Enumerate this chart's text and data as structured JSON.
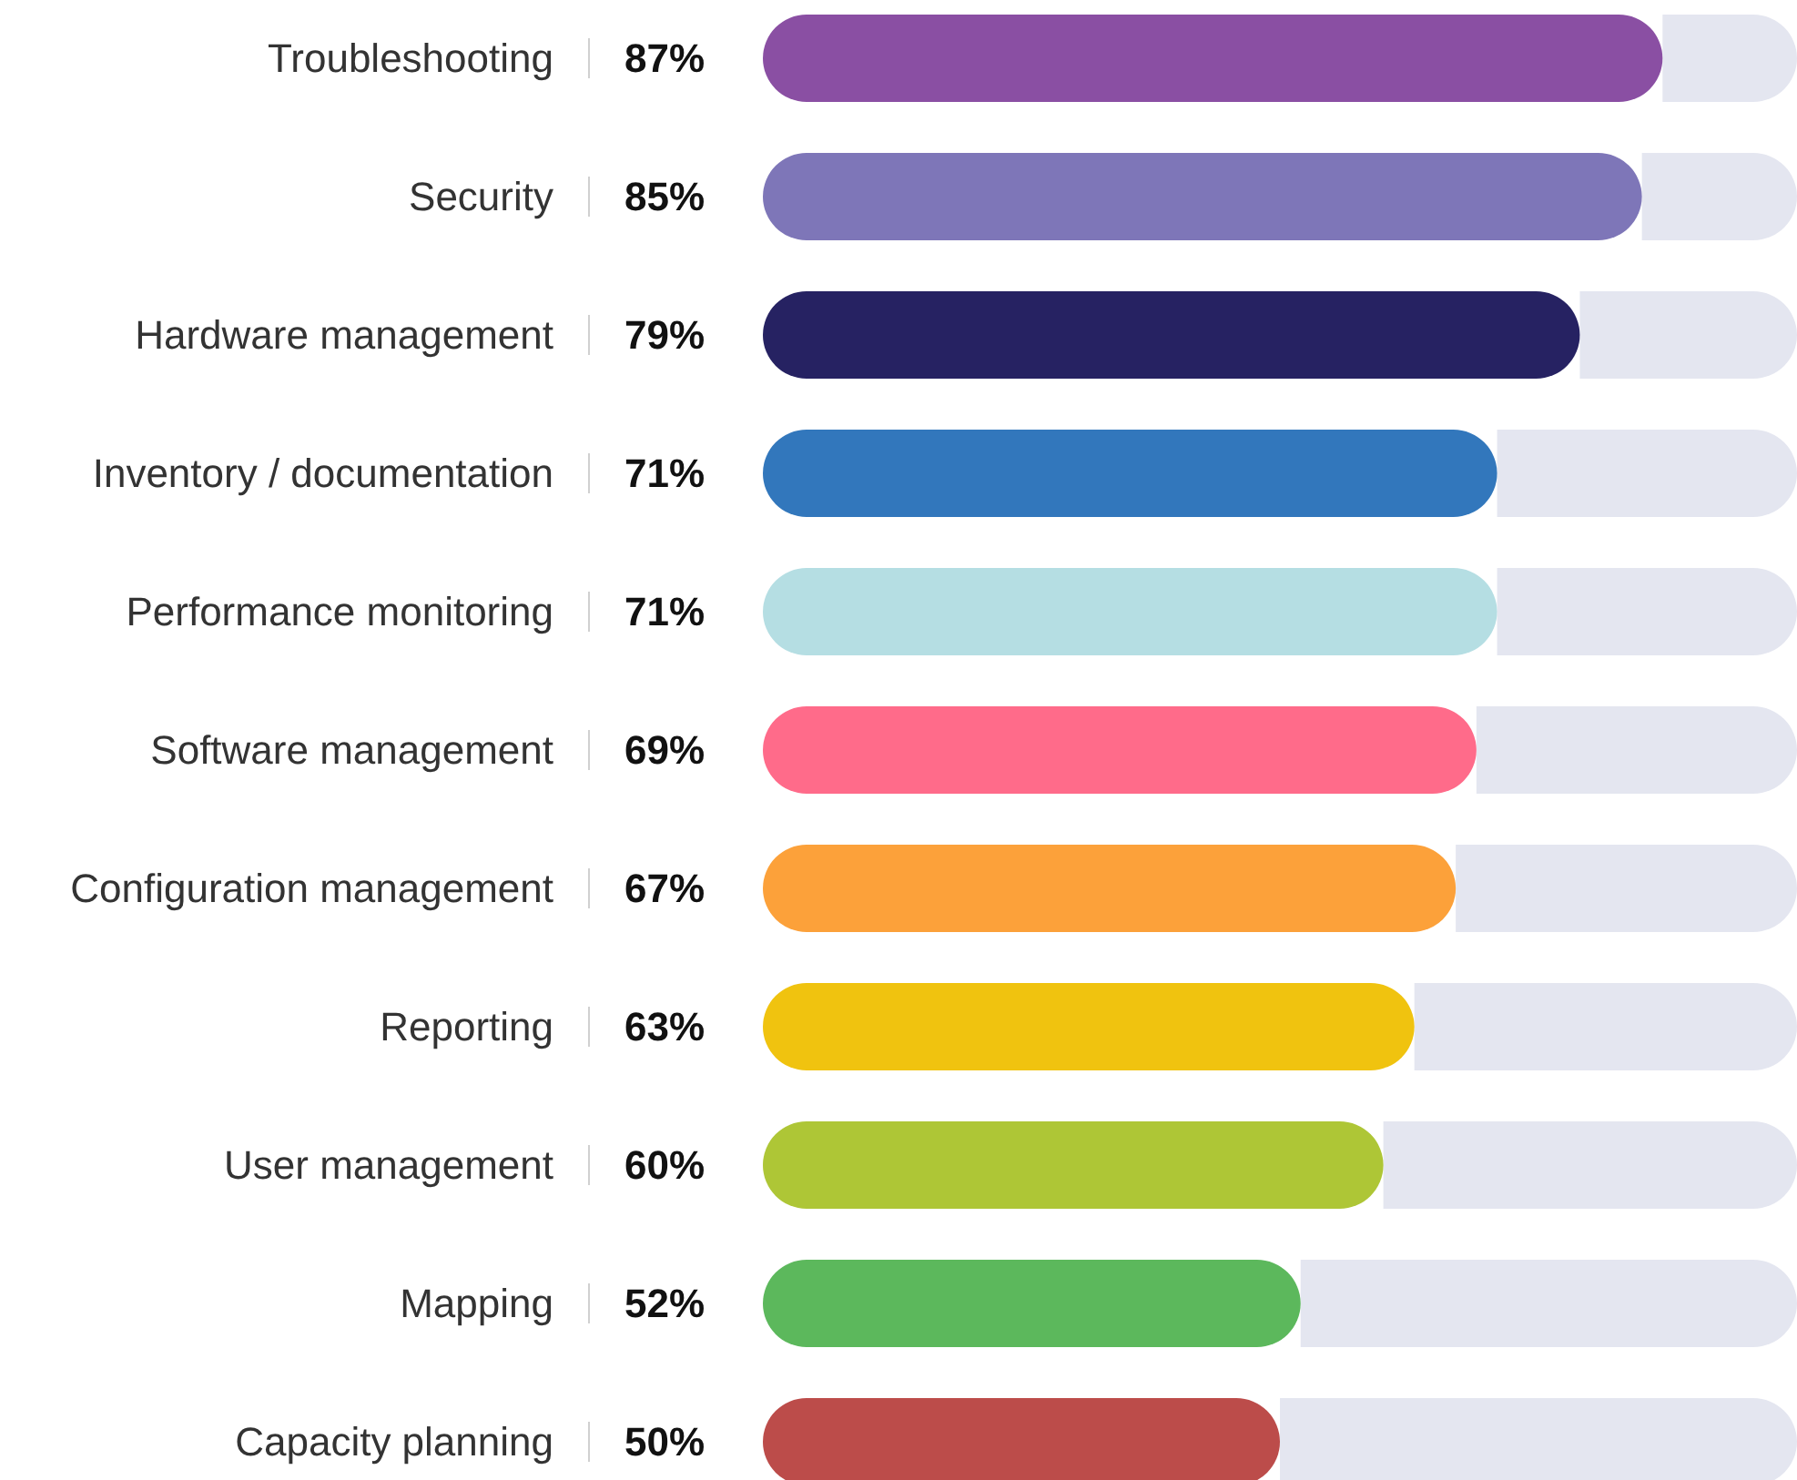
{
  "chart_data": {
    "type": "bar",
    "orientation": "horizontal",
    "stacked": true,
    "xlim": [
      0,
      100
    ],
    "categories": [
      "Troubleshooting",
      "Security",
      "Hardware management",
      "Inventory / documentation",
      "Performance monitoring",
      "Software management",
      "Configuration management",
      "Reporting",
      "User management",
      "Mapping",
      "Capacity planning"
    ],
    "series": [
      {
        "values": [
          87,
          85,
          79,
          71,
          71,
          69,
          67,
          63,
          60,
          52,
          50
        ],
        "colors": [
          "#8a4fa3",
          "#7e76b8",
          "#262262",
          "#3277bc",
          "#b5dee3",
          "#ff6b8a",
          "#fca13a",
          "#f0c30f",
          "#aec636",
          "#5cb85c",
          "#bc4c4a"
        ],
        "value_labels": [
          "87%",
          "85%",
          "79%",
          "71%",
          "71%",
          "69%",
          "67%",
          "63%",
          "60%",
          "52%",
          "50%"
        ]
      },
      {
        "values": [
          13,
          15,
          21,
          29,
          29,
          31,
          33,
          37,
          40,
          48,
          50
        ],
        "color": "#e4e6f0"
      }
    ]
  }
}
